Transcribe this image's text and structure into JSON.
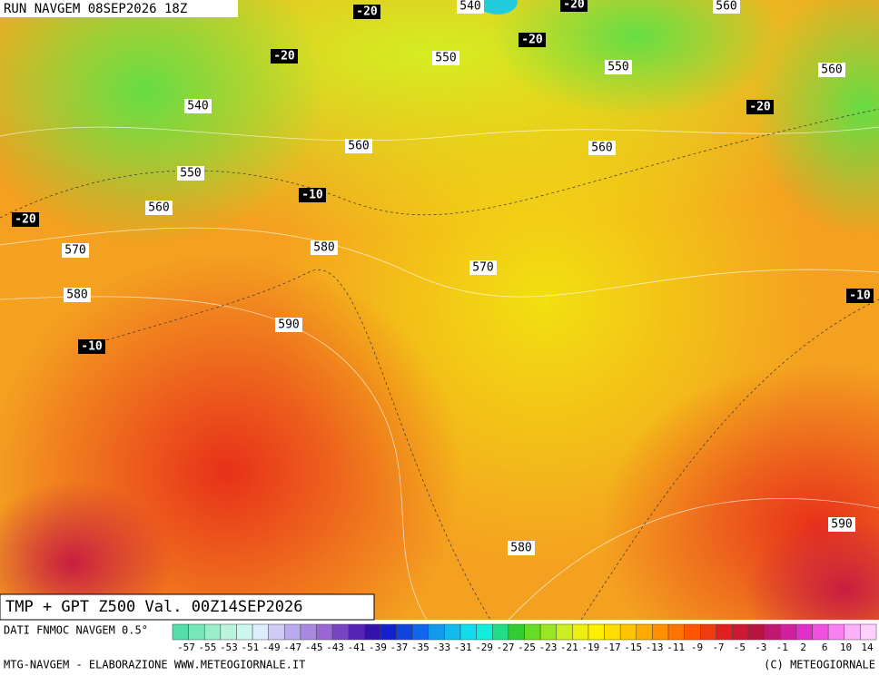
{
  "header": {
    "run": "RUN NAVGEM 08SEP2026 18Z",
    "title": "TMP + GPT Z500 Val. 00Z14SEP2026"
  },
  "map": {
    "height_labels": [
      "540",
      "560",
      "550",
      "550",
      "560",
      "540",
      "560",
      "560",
      "550",
      "560",
      "570",
      "580",
      "570",
      "580",
      "590",
      "590",
      "580"
    ],
    "temp_labels": [
      "-20",
      "-20",
      "-20",
      "-20",
      "-20",
      "-10",
      "-20",
      "-10",
      "-10"
    ]
  },
  "scale": {
    "source": "DATI FNMOC NAVGEM 0.5°",
    "labels": [
      "-57",
      "-55",
      "-53",
      "-51",
      "-49",
      "-47",
      "-45",
      "-43",
      "-41",
      "-39",
      "-37",
      "-35",
      "-33",
      "-31",
      "-29",
      "-27",
      "-25",
      "-23",
      "-21",
      "-19",
      "-17",
      "-15",
      "-13",
      "-11",
      "-9",
      "-7",
      "-5",
      "-3",
      "-1",
      "2",
      "6",
      "10",
      "14"
    ]
  },
  "footer": {
    "left": "MTG-NAVGEM - ELABORAZIONE WWW.METEOGIORNALE.IT",
    "right": "(C) METEOGIORNALE"
  }
}
